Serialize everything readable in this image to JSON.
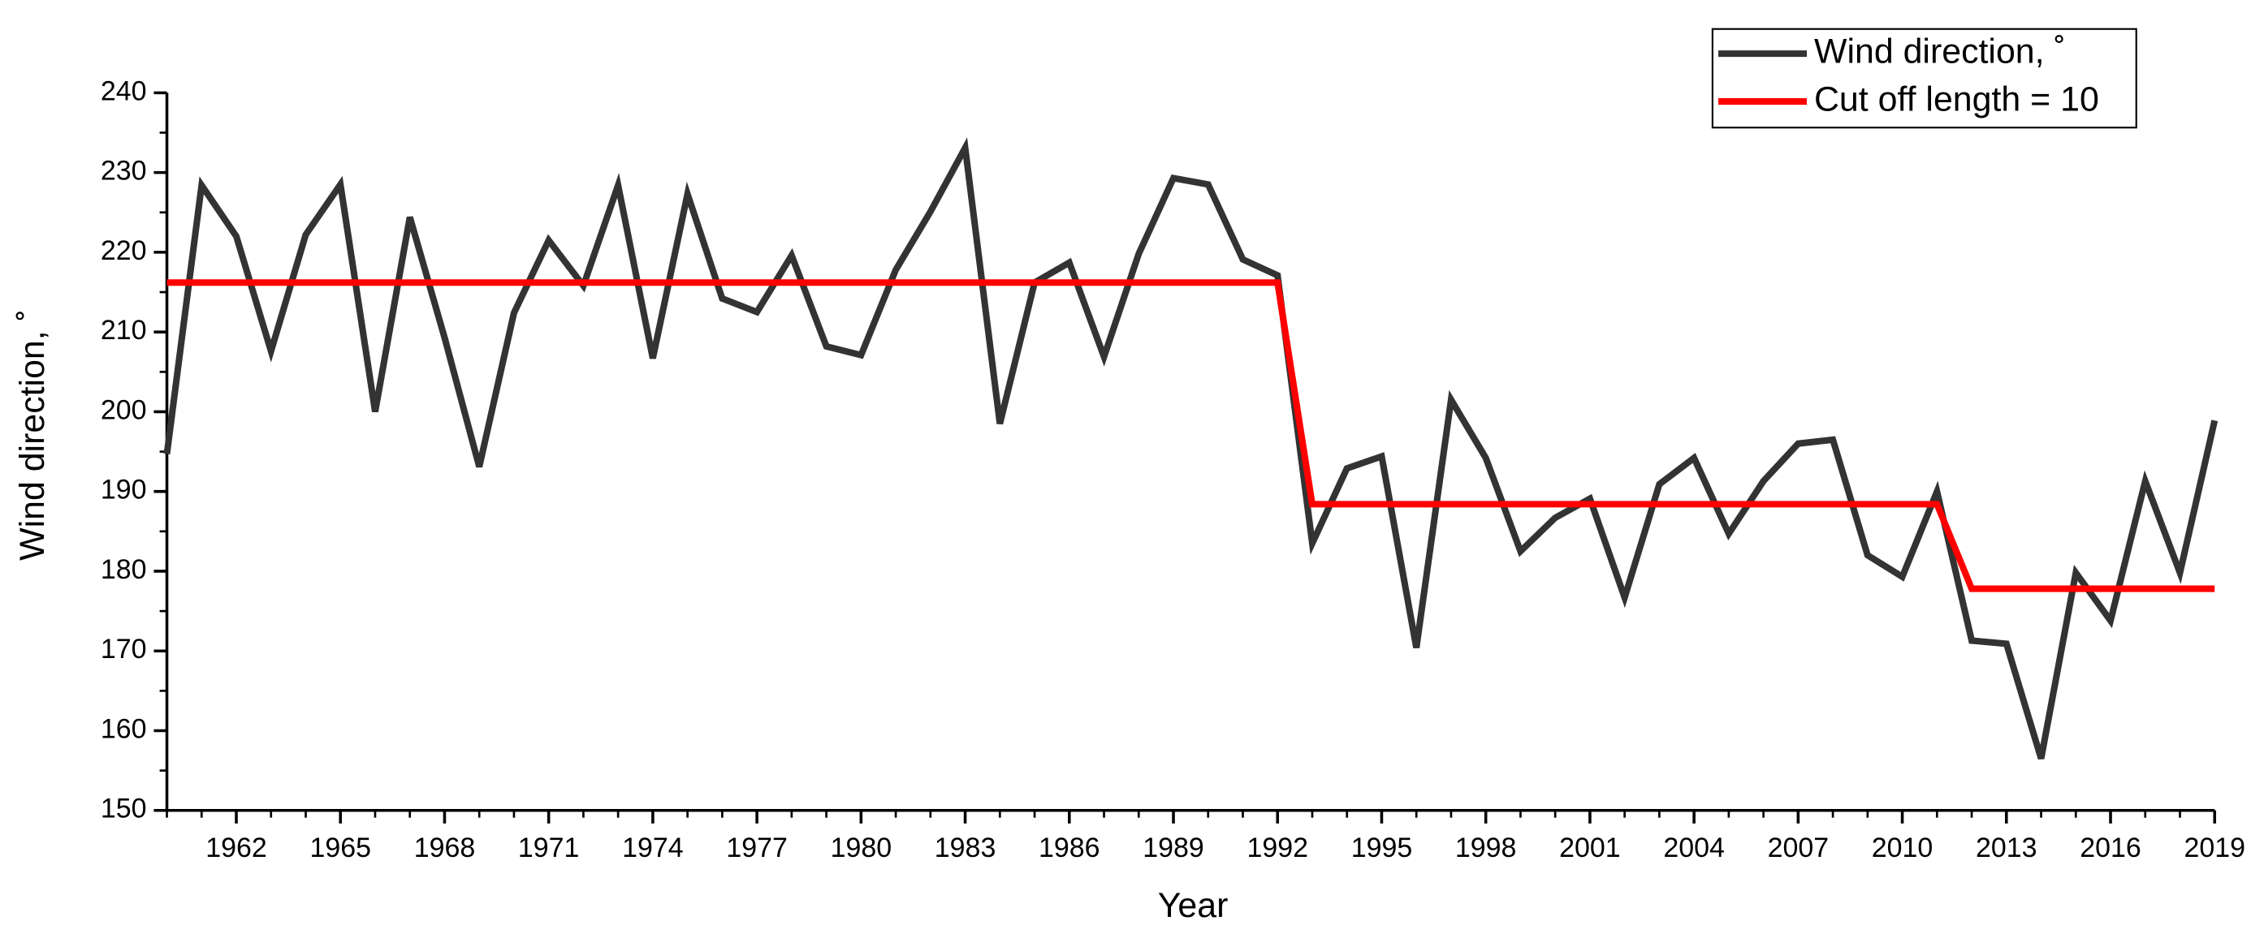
{
  "chart_data": {
    "type": "line",
    "x_label": "Year",
    "y_label": "Wind direction, ˚",
    "x": [
      1960,
      1961,
      1962,
      1963,
      1964,
      1965,
      1966,
      1967,
      1968,
      1969,
      1970,
      1971,
      1972,
      1973,
      1974,
      1975,
      1976,
      1977,
      1978,
      1979,
      1980,
      1981,
      1982,
      1983,
      1984,
      1985,
      1986,
      1987,
      1988,
      1989,
      1990,
      1991,
      1992,
      1993,
      1994,
      1995,
      1996,
      1997,
      1998,
      1999,
      2000,
      2001,
      2002,
      2003,
      2004,
      2005,
      2006,
      2007,
      2008,
      2009,
      2010,
      2011,
      2012,
      2013,
      2014,
      2015,
      2016,
      2017,
      2018,
      2019
    ],
    "series": [
      {
        "name": "Wind direction, ˚",
        "color": "#333333",
        "values": [
          194.7,
          228.4,
          222,
          207.6,
          222.2,
          228.5,
          200,
          224.4,
          209.3,
          193.1,
          212.4,
          221.5,
          215.8,
          228.4,
          206.7,
          227.3,
          214.2,
          212.5,
          219.6,
          208.2,
          207.1,
          217.8,
          225.1,
          233.1,
          198.5,
          216.2,
          218.7,
          206.9,
          219.8,
          229.3,
          228.5,
          219.1,
          217.1,
          183.5,
          192.9,
          194.4,
          170.4,
          201.5,
          194.2,
          182.5,
          186.7,
          189.1,
          176.7,
          190.9,
          194.2,
          184.7,
          191.3,
          196,
          196.5,
          182,
          179.3,
          190,
          171.3,
          170.9,
          156.5,
          179.8,
          173.8,
          191.3,
          179.8,
          198.9
        ]
      },
      {
        "name": "Cut off length = 10",
        "color": "#ff0000",
        "values": [
          216.2,
          216.2,
          216.2,
          216.2,
          216.2,
          216.2,
          216.2,
          216.2,
          216.2,
          216.2,
          216.2,
          216.2,
          216.2,
          216.2,
          216.2,
          216.2,
          216.2,
          216.2,
          216.2,
          216.2,
          216.2,
          216.2,
          216.2,
          216.2,
          216.2,
          216.2,
          216.2,
          216.2,
          216.2,
          216.2,
          216.2,
          216.2,
          216.2,
          188.4,
          188.4,
          188.4,
          188.4,
          188.4,
          188.4,
          188.4,
          188.4,
          188.4,
          188.4,
          188.4,
          188.4,
          188.4,
          188.4,
          188.4,
          188.4,
          188.4,
          188.4,
          188.4,
          177.8,
          177.8,
          177.8,
          177.8,
          177.8,
          177.8,
          177.8,
          177.8
        ]
      }
    ],
    "xlim": [
      1960,
      2019
    ],
    "ylim": [
      150,
      240
    ],
    "xticks": [
      1962,
      1965,
      1968,
      1971,
      1974,
      1977,
      1980,
      1983,
      1986,
      1989,
      1992,
      1995,
      1998,
      2001,
      2004,
      2007,
      2010,
      2013,
      2016,
      2019
    ],
    "yticks": [
      150,
      160,
      170,
      180,
      190,
      200,
      210,
      220,
      230,
      240
    ],
    "legend": "top-right"
  }
}
